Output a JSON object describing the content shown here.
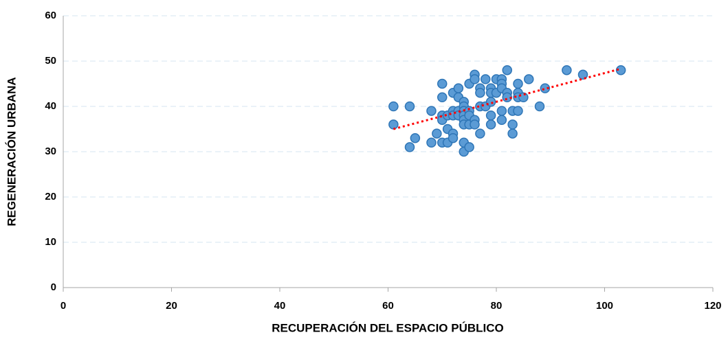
{
  "chart_data": {
    "type": "scatter",
    "xlabel": "RECUPERACIÓN DEL ESPACIO PÚBLICO",
    "ylabel": "REGENERACIÓN URBANA",
    "xlim": [
      0,
      120
    ],
    "xticks": [
      0,
      20,
      40,
      60,
      80,
      100,
      120
    ],
    "ylim": [
      0,
      60
    ],
    "yticks": [
      0,
      10,
      20,
      30,
      40,
      50,
      60
    ],
    "grid": true,
    "color": "#5b9bd5",
    "x": [
      61,
      61,
      64,
      64,
      65,
      68,
      68,
      69,
      70,
      70,
      70,
      70,
      70,
      71,
      71,
      71,
      72,
      72,
      72,
      72,
      72,
      73,
      73,
      73,
      73,
      74,
      74,
      74,
      74,
      74,
      74,
      74,
      74,
      75,
      75,
      75,
      75,
      75,
      76,
      76,
      76,
      76,
      77,
      77,
      77,
      77,
      78,
      78,
      79,
      79,
      79,
      79,
      79,
      80,
      80,
      81,
      81,
      81,
      81,
      81,
      82,
      82,
      82,
      83,
      83,
      83,
      84,
      84,
      84,
      84,
      85,
      86,
      88,
      89,
      93,
      96,
      103
    ],
    "y": [
      40,
      36,
      40,
      31,
      33,
      39,
      32,
      34,
      45,
      42,
      38,
      37,
      32,
      38,
      35,
      32,
      43,
      39,
      38,
      34,
      33,
      44,
      42,
      39,
      38,
      41,
      40,
      39,
      38,
      37,
      36,
      32,
      30,
      45,
      39,
      38,
      36,
      31,
      47,
      46,
      37,
      36,
      44,
      43,
      40,
      34,
      46,
      40,
      44,
      43,
      41,
      38,
      36,
      46,
      43,
      46,
      45,
      44,
      39,
      37,
      48,
      43,
      42,
      39,
      36,
      34,
      45,
      43,
      42,
      39,
      42,
      46,
      40,
      44,
      48,
      47,
      48
    ],
    "trendline": {
      "color": "#ff0000",
      "x": [
        61,
        103
      ],
      "y": [
        35,
        48.3
      ]
    }
  }
}
